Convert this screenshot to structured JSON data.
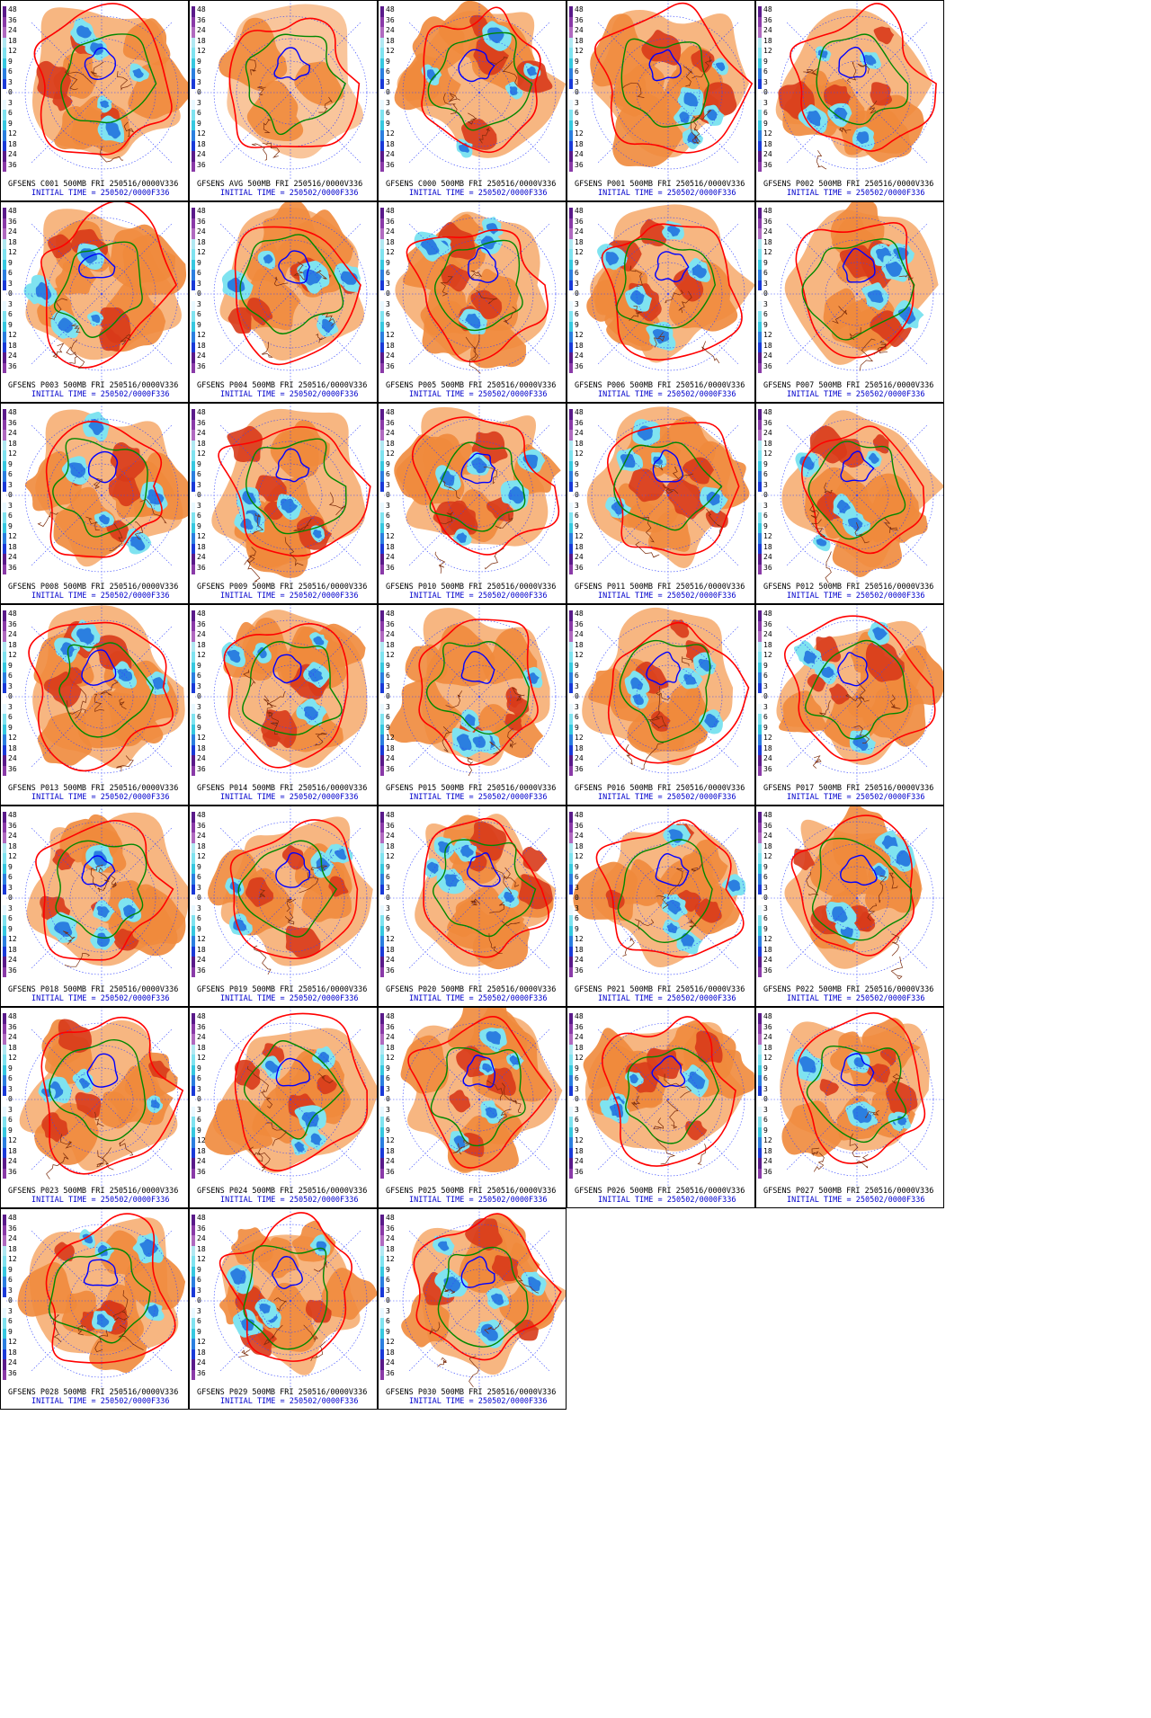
{
  "colors": {
    "positive_anomaly": [
      "#f7b27a",
      "#f08a3c",
      "#e85a1c",
      "#d83a1a"
    ],
    "negative_anomaly": [
      "#7fe3f0",
      "#36c8e0",
      "#2b7fe0",
      "#1a3ad8"
    ],
    "contour_low": "#0000ff",
    "contour_mid": "#008800",
    "contour_high": "#ff0000",
    "coast": "#7a2a0a",
    "grid": "#3344ff"
  },
  "scale": {
    "labels": [
      "48",
      "36",
      "24",
      "18",
      "12",
      "9",
      "6",
      "3",
      "0",
      "3",
      "6",
      "9",
      "12",
      "18",
      "24",
      "36"
    ]
  },
  "panels": [
    {
      "member": "C001",
      "caption": "GFSENS C001 500MB FRI 250516/0000V336",
      "init": "INITIAL TIME = 250502/0000F336"
    },
    {
      "member": "AVG",
      "caption": "GFSENS AVG 500MB FRI 250516/0000V336",
      "init": "INITIAL TIME = 250502/0000F336"
    },
    {
      "member": "C000",
      "caption": "GFSENS C000 500MB FRI 250516/0000V336",
      "init": "INITIAL TIME = 250502/0000F336"
    },
    {
      "member": "P001",
      "caption": "GFSENS P001 500MB FRI 250516/0000V336",
      "init": "INITIAL TIME = 250502/0000F336"
    },
    {
      "member": "P002",
      "caption": "GFSENS P002 500MB FRI 250516/0000V336",
      "init": "INITIAL TIME = 250502/0000F336"
    },
    {
      "member": "P003",
      "caption": "GFSENS P003 500MB FRI 250516/0000V336",
      "init": "INITIAL TIME = 250502/0000F336"
    },
    {
      "member": "P004",
      "caption": "GFSENS P004 500MB FRI 250516/0000V336",
      "init": "INITIAL TIME = 250502/0000F336"
    },
    {
      "member": "P005",
      "caption": "GFSENS P005 500MB FRI 250516/0000V336",
      "init": "INITIAL TIME = 250502/0000F336"
    },
    {
      "member": "P006",
      "caption": "GFSENS P006 500MB FRI 250516/0000V336",
      "init": "INITIAL TIME = 250502/0000F336"
    },
    {
      "member": "P007",
      "caption": "GFSENS P007 500MB FRI 250516/0000V336",
      "init": "INITIAL TIME = 250502/0000F336"
    },
    {
      "member": "P008",
      "caption": "GFSENS P008 500MB FRI 250516/0000V336",
      "init": "INITIAL TIME = 250502/0000F336"
    },
    {
      "member": "P009",
      "caption": "GFSENS P009 500MB FRI 250516/0000V336",
      "init": "INITIAL TIME = 250502/0000F336"
    },
    {
      "member": "P010",
      "caption": "GFSENS P010 500MB FRI 250516/0000V336",
      "init": "INITIAL TIME = 250502/0000F336"
    },
    {
      "member": "P011",
      "caption": "GFSENS P011 500MB FRI 250516/0000V336",
      "init": "INITIAL TIME = 250502/0000F336"
    },
    {
      "member": "P012",
      "caption": "GFSENS P012 500MB FRI 250516/0000V336",
      "init": "INITIAL TIME = 250502/0000F336"
    },
    {
      "member": "P013",
      "caption": "GFSENS P013 500MB FRI 250516/0000V336",
      "init": "INITIAL TIME = 250502/0000F336"
    },
    {
      "member": "P014",
      "caption": "GFSENS P014 500MB FRI 250516/0000V336",
      "init": "INITIAL TIME = 250502/0000F336"
    },
    {
      "member": "P015",
      "caption": "GFSENS P015 500MB FRI 250516/0000V336",
      "init": "INITIAL TIME = 250502/0000F336"
    },
    {
      "member": "P016",
      "caption": "GFSENS P016 500MB FRI 250516/0000V336",
      "init": "INITIAL TIME = 250502/0000F336"
    },
    {
      "member": "P017",
      "caption": "GFSENS P017 500MB FRI 250516/0000V336",
      "init": "INITIAL TIME = 250502/0000F336"
    },
    {
      "member": "P018",
      "caption": "GFSENS P018 500MB FRI 250516/0000V336",
      "init": "INITIAL TIME = 250502/0000F336"
    },
    {
      "member": "P019",
      "caption": "GFSENS P019 500MB FRI 250516/0000V336",
      "init": "INITIAL TIME = 250502/0000F336"
    },
    {
      "member": "P020",
      "caption": "GFSENS P020 500MB FRI 250516/0000V336",
      "init": "INITIAL TIME = 250502/0000F336"
    },
    {
      "member": "P021",
      "caption": "GFSENS P021 500MB FRI 250516/0000V336",
      "init": "INITIAL TIME = 250502/0000F336"
    },
    {
      "member": "P022",
      "caption": "GFSENS P022 500MB FRI 250516/0000V336",
      "init": "INITIAL TIME = 250502/0000F336"
    },
    {
      "member": "P023",
      "caption": "GFSENS P023 500MB FRI 250516/0000V336",
      "init": "INITIAL TIME = 250502/0000F336"
    },
    {
      "member": "P024",
      "caption": "GFSENS P024 500MB FRI 250516/0000V336",
      "init": "INITIAL TIME = 250502/0000F336"
    },
    {
      "member": "P025",
      "caption": "GFSENS P025 500MB FRI 250516/0000V336",
      "init": "INITIAL TIME = 250502/0000F336"
    },
    {
      "member": "P026",
      "caption": "GFSENS P026 500MB FRI 250516/0000V336",
      "init": "INITIAL TIME = 250502/0000F336"
    },
    {
      "member": "P027",
      "caption": "GFSENS P027 500MB FRI 250516/0000V336",
      "init": "INITIAL TIME = 250502/0000F336"
    },
    {
      "member": "P028",
      "caption": "GFSENS P028 500MB FRI 250516/0000V336",
      "init": "INITIAL TIME = 250502/0000F336"
    },
    {
      "member": "P029",
      "caption": "GFSENS P029 500MB FRI 250516/0000V336",
      "init": "INITIAL TIME = 250502/0000F336"
    },
    {
      "member": "P030",
      "caption": "GFSENS P030 500MB FRI 250516/0000V336",
      "init": "INITIAL TIME = 250502/0000F336"
    }
  ]
}
